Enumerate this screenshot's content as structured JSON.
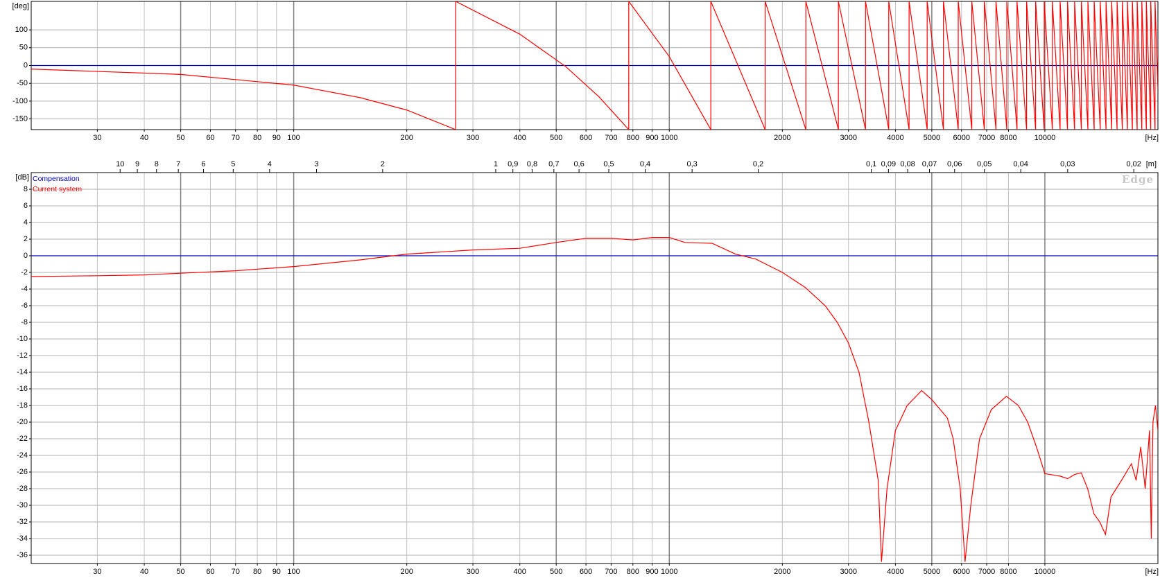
{
  "chart_data": [
    {
      "type": "line",
      "y_label": "[deg]",
      "x_label": "[Hz]",
      "log_x": true,
      "grid": true,
      "xlim": [
        20,
        20000
      ],
      "ylim": [
        -180,
        180
      ],
      "xticks": [
        30,
        40,
        50,
        60,
        70,
        80,
        90,
        100,
        200,
        300,
        400,
        500,
        600,
        700,
        800,
        900,
        1000,
        2000,
        3000,
        4000,
        5000,
        6000,
        7000,
        8000,
        10000
      ],
      "yticks": [
        100,
        50,
        0,
        -50,
        -100,
        -150
      ],
      "series": [
        {
          "color": "#0000c0",
          "x": [
            20,
            20000
          ],
          "values": [
            0,
            0
          ]
        },
        {
          "color": "#ff0000",
          "x": [
            20,
            50,
            100,
            150,
            200,
            270,
            270,
            400,
            530,
            650,
            780,
            780,
            1000,
            1290,
            1290,
            1800,
            1800,
            2310,
            2310,
            2820,
            2820,
            3330,
            3330,
            3840,
            3840,
            4350,
            4350,
            4860,
            4860,
            5370,
            5370,
            5880,
            5880,
            6390,
            6390,
            6900,
            6900,
            7410,
            7410,
            7920,
            7920,
            8430,
            8430,
            8940,
            8940,
            9450,
            9450,
            9960,
            9960,
            10470,
            10470,
            10980,
            10980,
            11490,
            11490,
            12000,
            12000,
            12510,
            12510,
            13020,
            13020,
            13530,
            13530,
            14040,
            14040,
            14550,
            14550,
            15060,
            15060,
            15570,
            15570,
            16080,
            16080,
            16590,
            16590,
            17100,
            17100,
            17610,
            17610,
            18120,
            18120,
            18630,
            18630,
            19140,
            19140,
            19650,
            19650,
            20000
          ],
          "values": [
            -10,
            -25,
            -55,
            -90,
            -125,
            -180,
            180,
            88,
            -3,
            -88,
            -180,
            180,
            25,
            -180,
            180,
            -180,
            180,
            -180,
            180,
            -180,
            180,
            -180,
            180,
            -180,
            180,
            -180,
            180,
            -180,
            180,
            -180,
            180,
            -180,
            180,
            -180,
            180,
            -180,
            180,
            -180,
            180,
            -180,
            180,
            -180,
            180,
            -180,
            180,
            -180,
            180,
            -180,
            180,
            -180,
            180,
            -180,
            180,
            -180,
            180,
            -180,
            180,
            -180,
            180,
            -180,
            180,
            -180,
            180,
            -180,
            180,
            -180,
            180,
            -180,
            180,
            -180,
            180,
            -180,
            180,
            -180,
            180,
            -180,
            180,
            -180,
            180,
            -180,
            180,
            -180,
            180,
            -180,
            180,
            -180,
            180,
            -67
          ]
        }
      ]
    },
    {
      "type": "line",
      "y_label": "[dB]",
      "x_label": "[Hz]",
      "x2_label": "[m]",
      "watermark": "Edge",
      "log_x": true,
      "grid": true,
      "legend": "top-left",
      "xlim": [
        20,
        20000
      ],
      "ylim": [
        -37,
        10
      ],
      "xticks": [
        30,
        40,
        50,
        60,
        70,
        80,
        90,
        100,
        200,
        300,
        400,
        500,
        600,
        700,
        800,
        900,
        1000,
        2000,
        3000,
        4000,
        5000,
        6000,
        7000,
        8000,
        10000
      ],
      "yticks": [
        8,
        6,
        4,
        2,
        0,
        -2,
        -4,
        -6,
        -8,
        -10,
        -12,
        -14,
        -16,
        -18,
        -20,
        -22,
        -24,
        -26,
        -28,
        -30,
        -32,
        -34,
        -36
      ],
      "x2lim": [
        17.25,
        0.01725
      ],
      "x2ticks": [
        10,
        9,
        8,
        7,
        6,
        5,
        4,
        3,
        2,
        1,
        {
          "value": 0.9,
          "label": "0,9"
        },
        {
          "value": 0.8,
          "label": "0,8"
        },
        {
          "value": 0.7,
          "label": "0,7"
        },
        {
          "value": 0.6,
          "label": "0,6"
        },
        {
          "value": 0.5,
          "label": "0,5"
        },
        {
          "value": 0.4,
          "label": "0,4"
        },
        {
          "value": 0.3,
          "label": "0,3"
        },
        {
          "value": 0.2,
          "label": "0,2"
        },
        {
          "value": 0.1,
          "label": "0,1"
        },
        {
          "value": 0.09,
          "label": "0,09"
        },
        {
          "value": 0.08,
          "label": "0,08"
        },
        {
          "value": 0.07,
          "label": "0,07"
        },
        {
          "value": 0.06,
          "label": "0,06"
        },
        {
          "value": 0.05,
          "label": "0,05"
        },
        {
          "value": 0.04,
          "label": "0,04"
        },
        {
          "value": 0.03,
          "label": "0,03"
        },
        {
          "value": 0.02,
          "label": "0,02"
        }
      ],
      "series": [
        {
          "name": "Compensation",
          "color": "#0000c0",
          "x": [
            20,
            20000
          ],
          "values": [
            0,
            0
          ]
        },
        {
          "name": "Current system",
          "color": "#ff0000",
          "x": [
            20,
            30,
            40,
            50,
            70,
            100,
            150,
            200,
            300,
            400,
            500,
            600,
            700,
            800,
            900,
            1000,
            1100,
            1300,
            1500,
            1700,
            2000,
            2300,
            2600,
            2800,
            3000,
            3200,
            3400,
            3600,
            3673,
            3800,
            4000,
            4300,
            4700,
            5000,
            5500,
            5700,
            5950,
            6130,
            6350,
            6700,
            7200,
            7900,
            8500,
            9000,
            9500,
            10000,
            11000,
            11500,
            12000,
            12500,
            13000,
            13500,
            14000,
            14500,
            15000,
            16000,
            17000,
            17500,
            18000,
            18500,
            19000,
            19200,
            19400,
            19700,
            20000
          ],
          "values": [
            -2.5,
            -2.4,
            -2.3,
            -2.1,
            -1.8,
            -1.3,
            -0.5,
            0.2,
            0.7,
            0.9,
            1.6,
            2.1,
            2.1,
            1.9,
            2.2,
            2.2,
            1.6,
            1.5,
            0.2,
            -0.4,
            -2,
            -3.8,
            -6,
            -8,
            -10.5,
            -14,
            -20,
            -27,
            -36.8,
            -28,
            -21,
            -18,
            -16.2,
            -17.3,
            -19.5,
            -22,
            -28,
            -36.8,
            -30,
            -22,
            -18.5,
            -16.9,
            -18,
            -20,
            -23,
            -26.2,
            -26.5,
            -26.8,
            -26.3,
            -26.1,
            -28,
            -31,
            -32,
            -33.5,
            -29,
            -27,
            -25,
            -27,
            -23,
            -28,
            -21,
            -34,
            -20,
            -18,
            -21
          ]
        }
      ]
    }
  ]
}
